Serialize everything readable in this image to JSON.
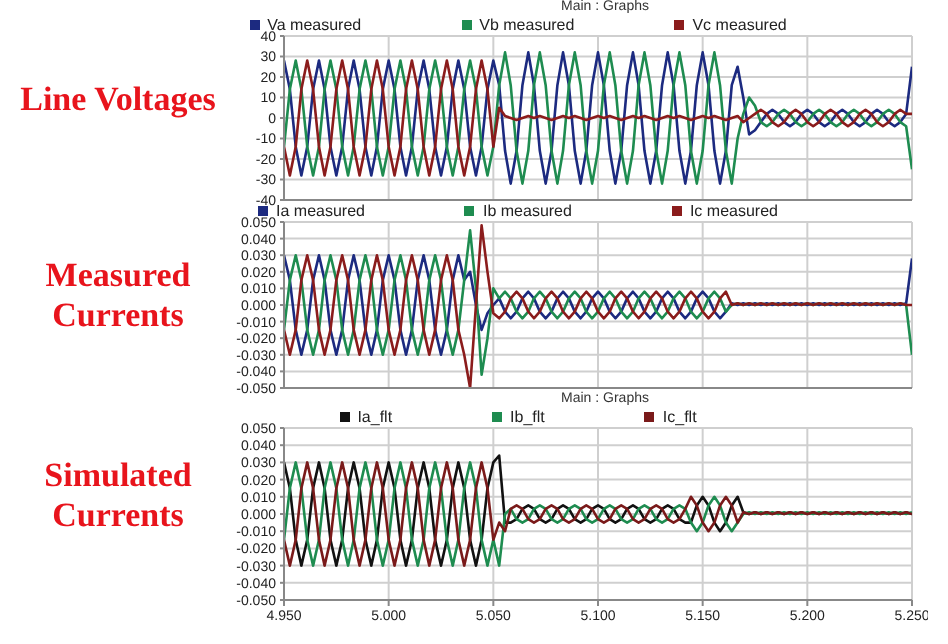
{
  "chart_data": [
    {
      "type": "line",
      "title": "Main : Graphs",
      "ylabel": "Line Voltages",
      "legend": "top",
      "grid": true,
      "tick_labels": "y",
      "xlim": [
        4.95,
        5.25
      ],
      "xticks": [
        {
          "value": 4.95,
          "label": null
        },
        {
          "value": 5.0,
          "label": null
        },
        {
          "value": 5.05,
          "label": null
        },
        {
          "value": 5.1,
          "label": null
        },
        {
          "value": 5.15,
          "label": null
        },
        {
          "value": 5.2,
          "label": null
        },
        {
          "value": 5.25,
          "label": null
        }
      ],
      "ylim": [
        -40,
        40
      ],
      "yticks": [
        -40,
        -30,
        -20,
        -10,
        0,
        10,
        20,
        30,
        40
      ],
      "x": [
        4.95,
        4.9528,
        4.9556,
        4.9583,
        4.9611,
        4.9639,
        4.9667,
        4.9694,
        4.9722,
        4.975,
        4.9778,
        4.9806,
        4.9833,
        4.9861,
        4.9889,
        4.9917,
        4.9944,
        4.9972,
        5.0,
        5.0028,
        5.0056,
        5.0083,
        5.0111,
        5.0139,
        5.0167,
        5.0194,
        5.0222,
        5.025,
        5.0278,
        5.0306,
        5.0333,
        5.0361,
        5.0389,
        5.0417,
        5.0444,
        5.0472,
        5.05,
        5.0528,
        5.0556,
        5.0583,
        5.0611,
        5.0639,
        5.0667,
        5.0694,
        5.0722,
        5.075,
        5.0778,
        5.0806,
        5.0833,
        5.0861,
        5.0889,
        5.0917,
        5.0944,
        5.0972,
        5.1,
        5.1028,
        5.1056,
        5.1083,
        5.1111,
        5.1139,
        5.1167,
        5.1194,
        5.1222,
        5.125,
        5.1278,
        5.1306,
        5.1333,
        5.1361,
        5.1389,
        5.1417,
        5.1444,
        5.1472,
        5.15,
        5.1528,
        5.1556,
        5.1583,
        5.1611,
        5.1639,
        5.1667,
        5.1694,
        5.1722,
        5.175,
        5.1778,
        5.1806,
        5.1833,
        5.1861,
        5.1889,
        5.1917,
        5.1944,
        5.1972,
        5.2,
        5.2028,
        5.2056,
        5.2083,
        5.2111,
        5.2139,
        5.2167,
        5.2194,
        5.2222,
        5.225,
        5.2278,
        5.2306,
        5.2333,
        5.2361,
        5.2389,
        5.2417,
        5.2444,
        5.2472,
        5.25
      ],
      "series": [
        {
          "name": "Va measured",
          "color": "#1c2a80",
          "values": [
            28,
            14,
            -14,
            -28,
            -14,
            14,
            28,
            14,
            -14,
            -28,
            -14,
            14,
            28,
            14,
            -14,
            -28,
            -14,
            14,
            28,
            14,
            -14,
            -28,
            -14,
            14,
            28,
            14,
            -14,
            -28,
            -14,
            14,
            28,
            14,
            -14,
            -28,
            -14,
            14,
            28,
            16,
            -16,
            -32,
            -16,
            16,
            32,
            16,
            -16,
            -32,
            -16,
            16,
            32,
            16,
            -16,
            -32,
            -16,
            16,
            32,
            16,
            -16,
            -32,
            -16,
            16,
            32,
            16,
            -16,
            -32,
            -16,
            16,
            32,
            16,
            -16,
            -32,
            -16,
            16,
            32,
            16,
            -16,
            -32,
            -16,
            16,
            25,
            10,
            -8,
            -6,
            -2,
            2,
            4,
            2,
            -2,
            -4,
            -2,
            2,
            4,
            2,
            -2,
            -4,
            -2,
            2,
            4,
            2,
            -2,
            -4,
            -2,
            2,
            4,
            2,
            -2,
            -4,
            -2,
            2,
            25
          ]
        },
        {
          "name": "Vb measured",
          "color": "#1e8c50",
          "values": [
            -14,
            14,
            28,
            14,
            -14,
            -28,
            -14,
            14,
            28,
            14,
            -14,
            -28,
            -14,
            14,
            28,
            14,
            -14,
            -28,
            -14,
            14,
            28,
            14,
            -14,
            -28,
            -14,
            14,
            28,
            14,
            -14,
            -28,
            -14,
            14,
            28,
            14,
            -14,
            -28,
            -14,
            16,
            32,
            16,
            -16,
            -32,
            -16,
            16,
            32,
            16,
            -16,
            -32,
            -16,
            16,
            32,
            16,
            -16,
            -32,
            -16,
            16,
            32,
            16,
            -16,
            -32,
            -16,
            16,
            32,
            16,
            -16,
            -32,
            -16,
            16,
            32,
            16,
            -16,
            -32,
            -16,
            16,
            32,
            16,
            -16,
            -32,
            -10,
            2,
            10,
            6,
            -2,
            -4,
            -2,
            2,
            4,
            2,
            -2,
            -4,
            -2,
            2,
            4,
            2,
            -2,
            -4,
            -2,
            2,
            4,
            2,
            -2,
            -4,
            -2,
            2,
            4,
            2,
            -2,
            -4,
            -25
          ]
        },
        {
          "name": "Vc measured",
          "color": "#8b1c1c",
          "values": [
            -14,
            -28,
            -14,
            14,
            28,
            14,
            -14,
            -28,
            -14,
            14,
            28,
            14,
            -14,
            -28,
            -14,
            14,
            28,
            14,
            -14,
            -28,
            -14,
            14,
            28,
            14,
            -14,
            -28,
            -14,
            14,
            28,
            14,
            -14,
            -28,
            -14,
            14,
            28,
            14,
            -14,
            5,
            1,
            0,
            -1,
            0,
            1,
            0,
            1,
            0,
            -1,
            0,
            1,
            0,
            1,
            0,
            -1,
            0,
            1,
            0,
            1,
            0,
            -1,
            0,
            1,
            0,
            1,
            0,
            -1,
            0,
            1,
            0,
            1,
            0,
            -1,
            0,
            1,
            0,
            1,
            0,
            -1,
            0,
            1,
            -2,
            0,
            2,
            4,
            2,
            -2,
            -4,
            -2,
            2,
            4,
            2,
            -2,
            -4,
            -2,
            2,
            4,
            2,
            -2,
            -4,
            -2,
            2,
            4,
            2,
            -2,
            -4,
            -2,
            2,
            4,
            2,
            2
          ]
        }
      ]
    },
    {
      "type": "line",
      "ylabel": "Measured Currents",
      "legend": "top",
      "grid": true,
      "tick_labels": "y",
      "xlim": [
        4.95,
        5.25
      ],
      "xticks": [
        {
          "value": 4.95,
          "label": null
        },
        {
          "value": 5.0,
          "label": null
        },
        {
          "value": 5.05,
          "label": null
        },
        {
          "value": 5.1,
          "label": null
        },
        {
          "value": 5.15,
          "label": null
        },
        {
          "value": 5.2,
          "label": null
        },
        {
          "value": 5.25,
          "label": null
        }
      ],
      "ylim": [
        -0.05,
        0.05
      ],
      "yticks": [
        {
          "value": -0.05,
          "label": "-0.050"
        },
        {
          "value": -0.04,
          "label": "-0.040"
        },
        {
          "value": -0.03,
          "label": "-0.030"
        },
        {
          "value": -0.02,
          "label": "-0.020"
        },
        {
          "value": -0.01,
          "label": "-0.010"
        },
        {
          "value": 0,
          "label": "0.000"
        },
        {
          "value": 0.01,
          "label": "0.010"
        },
        {
          "value": 0.02,
          "label": "0.020"
        },
        {
          "value": 0.03,
          "label": "0.030"
        },
        {
          "value": 0.04,
          "label": "0.040"
        },
        {
          "value": 0.05,
          "label": "0.050"
        }
      ],
      "x": [
        4.95,
        4.9528,
        4.9556,
        4.9583,
        4.9611,
        4.9639,
        4.9667,
        4.9694,
        4.9722,
        4.975,
        4.9778,
        4.9806,
        4.9833,
        4.9861,
        4.9889,
        4.9917,
        4.9944,
        4.9972,
        5.0,
        5.0028,
        5.0056,
        5.0083,
        5.0111,
        5.0139,
        5.0167,
        5.0194,
        5.0222,
        5.025,
        5.0278,
        5.0306,
        5.0333,
        5.0361,
        5.0389,
        5.0417,
        5.0444,
        5.0472,
        5.05,
        5.0528,
        5.0556,
        5.0583,
        5.0611,
        5.0639,
        5.0667,
        5.0694,
        5.0722,
        5.075,
        5.0778,
        5.0806,
        5.0833,
        5.0861,
        5.0889,
        5.0917,
        5.0944,
        5.0972,
        5.1,
        5.1028,
        5.1056,
        5.1083,
        5.1111,
        5.1139,
        5.1167,
        5.1194,
        5.1222,
        5.125,
        5.1278,
        5.1306,
        5.1333,
        5.1361,
        5.1389,
        5.1417,
        5.1444,
        5.1472,
        5.15,
        5.1528,
        5.1556,
        5.1583,
        5.1611,
        5.1639,
        5.1667,
        5.1694,
        5.1722,
        5.175,
        5.1778,
        5.1806,
        5.1833,
        5.1861,
        5.1889,
        5.1917,
        5.1944,
        5.1972,
        5.2,
        5.2028,
        5.2056,
        5.2083,
        5.2111,
        5.2139,
        5.2167,
        5.2194,
        5.2222,
        5.225,
        5.2278,
        5.2306,
        5.2333,
        5.2361,
        5.2389,
        5.2417,
        5.2444,
        5.2472,
        5.25
      ],
      "series": [
        {
          "name": "Ia measured",
          "color": "#1c2a80",
          "values": [
            0.03,
            0.015,
            -0.015,
            -0.03,
            -0.015,
            0.015,
            0.03,
            0.015,
            -0.015,
            -0.03,
            -0.015,
            0.015,
            0.03,
            0.015,
            -0.015,
            -0.03,
            -0.015,
            0.015,
            0.03,
            0.015,
            -0.015,
            -0.03,
            -0.015,
            0.015,
            0.03,
            0.015,
            -0.015,
            -0.03,
            -0.015,
            0.015,
            0.03,
            0.015,
            0.02,
            0,
            -0.015,
            -0.005,
            0,
            0.004,
            -0.004,
            -0.008,
            -0.004,
            0.004,
            0.008,
            0.004,
            -0.004,
            -0.008,
            -0.004,
            0.004,
            0.008,
            0.004,
            -0.004,
            -0.008,
            -0.004,
            0.004,
            0.008,
            0.004,
            -0.004,
            -0.008,
            -0.004,
            0.004,
            0.008,
            0.004,
            -0.004,
            -0.008,
            -0.004,
            0.004,
            0.008,
            0.004,
            -0.004,
            -0.008,
            -0.004,
            0.004,
            0.008,
            0.004,
            -0.004,
            -0.008,
            -0.004,
            0.001,
            0,
            0.001,
            0,
            0.001,
            0,
            0.001,
            0,
            0.001,
            0,
            0.001,
            0,
            0.001,
            0,
            0.001,
            0,
            0.001,
            0,
            0.001,
            0,
            0.001,
            0,
            0.001,
            0,
            0.001,
            0,
            0.001,
            0,
            0.001,
            0,
            0.001,
            0.028
          ]
        },
        {
          "name": "Ib measured",
          "color": "#1e8c50",
          "values": [
            -0.015,
            0.015,
            0.03,
            0.015,
            -0.015,
            -0.03,
            -0.015,
            0.015,
            0.03,
            0.015,
            -0.015,
            -0.03,
            -0.015,
            0.015,
            0.03,
            0.015,
            -0.015,
            -0.03,
            -0.015,
            0.015,
            0.03,
            0.015,
            -0.015,
            -0.03,
            -0.015,
            0.015,
            0.03,
            0.015,
            -0.015,
            -0.03,
            -0.015,
            0.015,
            0.045,
            0.01,
            -0.042,
            -0.02,
            0.01,
            0.004,
            0.008,
            0.004,
            -0.004,
            -0.008,
            -0.004,
            0.004,
            0.008,
            0.004,
            -0.004,
            -0.008,
            -0.004,
            0.004,
            0.008,
            0.004,
            -0.004,
            -0.008,
            -0.004,
            0.004,
            0.008,
            0.004,
            -0.004,
            -0.008,
            -0.004,
            0.004,
            0.008,
            0.004,
            -0.004,
            -0.008,
            -0.004,
            0.004,
            0.008,
            0.004,
            -0.004,
            -0.008,
            -0.004,
            0.004,
            0.008,
            0.004,
            -0.004,
            0,
            0.001,
            0,
            0.001,
            0,
            0.001,
            0,
            0.001,
            0,
            0.001,
            0,
            0.001,
            0,
            0.001,
            0,
            0.001,
            0,
            0.001,
            0,
            0.001,
            0,
            0.001,
            0,
            0.001,
            0,
            0.001,
            0,
            0.001,
            0,
            0.001,
            0,
            -0.03
          ]
        },
        {
          "name": "Ic measured",
          "color": "#8b1c1c",
          "values": [
            -0.015,
            -0.03,
            -0.015,
            0.015,
            0.03,
            0.015,
            -0.015,
            -0.03,
            -0.015,
            0.015,
            0.03,
            0.015,
            -0.015,
            -0.03,
            -0.015,
            0.015,
            0.03,
            0.015,
            -0.015,
            -0.03,
            -0.015,
            0.015,
            0.03,
            0.015,
            -0.015,
            -0.03,
            -0.015,
            0.015,
            0.03,
            0.015,
            -0.015,
            -0.03,
            -0.05,
            0,
            0.048,
            0.02,
            -0.005,
            -0.008,
            -0.004,
            0.004,
            0.008,
            0.004,
            -0.004,
            -0.008,
            -0.004,
            0.004,
            0.008,
            0.004,
            -0.004,
            -0.008,
            -0.004,
            0.004,
            0.008,
            0.004,
            -0.004,
            -0.008,
            -0.004,
            0.004,
            0.008,
            0.004,
            -0.004,
            -0.008,
            -0.004,
            0.004,
            0.008,
            0.004,
            -0.004,
            -0.008,
            -0.004,
            0.004,
            0.008,
            0.004,
            -0.004,
            -0.008,
            -0.004,
            0.004,
            0.008,
            0,
            0.001,
            0,
            0.001,
            0,
            0.001,
            0,
            0.001,
            0,
            0.001,
            0,
            0.001,
            0,
            0.001,
            0,
            0.001,
            0,
            0.001,
            0,
            0.001,
            0,
            0.001,
            0,
            0.001,
            0,
            0.001,
            0,
            0.001,
            0,
            0.001,
            0,
            0
          ]
        }
      ]
    },
    {
      "type": "line",
      "title": "Main : Graphs",
      "ylabel": "Simulated Currents",
      "legend": "top",
      "grid": true,
      "xlim": [
        4.95,
        5.25
      ],
      "xticks": [
        {
          "value": 4.95,
          "label": "4.950"
        },
        {
          "value": 5.0,
          "label": "5.000"
        },
        {
          "value": 5.05,
          "label": "5.050"
        },
        {
          "value": 5.1,
          "label": "5.100"
        },
        {
          "value": 5.15,
          "label": "5.150"
        },
        {
          "value": 5.2,
          "label": "5.200"
        },
        {
          "value": 5.25,
          "label": "5.250"
        }
      ],
      "ylim": [
        -0.05,
        0.05
      ],
      "yticks": [
        {
          "value": -0.05,
          "label": "-0.050"
        },
        {
          "value": -0.04,
          "label": "-0.040"
        },
        {
          "value": -0.03,
          "label": "-0.030"
        },
        {
          "value": -0.02,
          "label": "-0.020"
        },
        {
          "value": -0.01,
          "label": "-0.010"
        },
        {
          "value": 0,
          "label": "0.000"
        },
        {
          "value": 0.01,
          "label": "0.010"
        },
        {
          "value": 0.02,
          "label": "0.020"
        },
        {
          "value": 0.03,
          "label": "0.030"
        },
        {
          "value": 0.04,
          "label": "0.040"
        },
        {
          "value": 0.05,
          "label": "0.050"
        }
      ],
      "x": [
        4.95,
        4.9528,
        4.9556,
        4.9583,
        4.9611,
        4.9639,
        4.9667,
        4.9694,
        4.9722,
        4.975,
        4.9778,
        4.9806,
        4.9833,
        4.9861,
        4.9889,
        4.9917,
        4.9944,
        4.9972,
        5.0,
        5.0028,
        5.0056,
        5.0083,
        5.0111,
        5.0139,
        5.0167,
        5.0194,
        5.0222,
        5.025,
        5.0278,
        5.0306,
        5.0333,
        5.0361,
        5.0389,
        5.0417,
        5.0444,
        5.0472,
        5.05,
        5.0528,
        5.0556,
        5.0583,
        5.0611,
        5.0639,
        5.0667,
        5.0694,
        5.0722,
        5.075,
        5.0778,
        5.0806,
        5.0833,
        5.0861,
        5.0889,
        5.0917,
        5.0944,
        5.0972,
        5.1,
        5.1028,
        5.1056,
        5.1083,
        5.1111,
        5.1139,
        5.1167,
        5.1194,
        5.1222,
        5.125,
        5.1278,
        5.1306,
        5.1333,
        5.1361,
        5.1389,
        5.1417,
        5.1444,
        5.1472,
        5.15,
        5.1528,
        5.1556,
        5.1583,
        5.1611,
        5.1639,
        5.1667,
        5.1694,
        5.1722,
        5.175,
        5.1778,
        5.1806,
        5.1833,
        5.1861,
        5.1889,
        5.1917,
        5.1944,
        5.1972,
        5.2,
        5.2028,
        5.2056,
        5.2083,
        5.2111,
        5.2139,
        5.2167,
        5.2194,
        5.2222,
        5.225,
        5.2278,
        5.2306,
        5.2333,
        5.2361,
        5.2389,
        5.2417,
        5.2444,
        5.2472,
        5.25
      ],
      "series": [
        {
          "name": "Ia_flt",
          "color": "#111111",
          "values": [
            0.03,
            0.015,
            -0.015,
            -0.03,
            -0.015,
            0.015,
            0.03,
            0.015,
            -0.015,
            -0.03,
            -0.015,
            0.015,
            0.03,
            0.015,
            -0.015,
            -0.03,
            -0.015,
            0.015,
            0.03,
            0.015,
            -0.015,
            -0.03,
            -0.015,
            0.015,
            0.03,
            0.015,
            -0.015,
            -0.03,
            -0.015,
            0.015,
            0.03,
            0.015,
            -0.015,
            -0.03,
            -0.015,
            0.015,
            0.03,
            0.034,
            -0.005,
            -0.005,
            -0.003,
            0.003,
            0.005,
            0.003,
            -0.003,
            -0.005,
            -0.003,
            0.003,
            0.005,
            0.003,
            -0.003,
            -0.005,
            -0.003,
            0.003,
            0.005,
            0.003,
            -0.003,
            -0.005,
            -0.003,
            0.003,
            0.005,
            0.003,
            -0.003,
            -0.005,
            -0.003,
            0.003,
            0.005,
            0.003,
            -0.003,
            -0.005,
            -0.005,
            0.005,
            0.01,
            0.005,
            -0.005,
            -0.01,
            -0.005,
            0.005,
            0.01,
            0.001,
            0,
            0.001,
            0,
            0.001,
            0,
            0.001,
            0,
            0.001,
            0,
            0.001,
            0,
            0.001,
            0,
            0.001,
            0,
            0.001,
            0,
            0.001,
            0,
            0.001,
            0,
            0.001,
            0,
            0.001,
            0,
            0.001,
            0,
            0.001,
            0
          ]
        },
        {
          "name": "Ib_flt",
          "color": "#1e8c50",
          "values": [
            -0.015,
            0.015,
            0.03,
            0.015,
            -0.015,
            -0.03,
            -0.015,
            0.015,
            0.03,
            0.015,
            -0.015,
            -0.03,
            -0.015,
            0.015,
            0.03,
            0.015,
            -0.015,
            -0.03,
            -0.015,
            0.015,
            0.03,
            0.015,
            -0.015,
            -0.03,
            -0.015,
            0.015,
            0.03,
            0.015,
            -0.015,
            -0.03,
            -0.015,
            0.015,
            0.03,
            0.015,
            -0.015,
            -0.03,
            -0.015,
            -0.03,
            0,
            0.003,
            -0.003,
            -0.005,
            -0.003,
            0.003,
            0.005,
            0.003,
            -0.003,
            -0.005,
            -0.003,
            0.003,
            0.005,
            0.003,
            -0.003,
            -0.005,
            -0.003,
            0.003,
            0.005,
            0.003,
            -0.003,
            -0.005,
            -0.003,
            0.003,
            0.005,
            0.003,
            -0.003,
            -0.005,
            -0.003,
            0.003,
            0.005,
            0.003,
            -0.005,
            -0.01,
            -0.005,
            0.005,
            0.01,
            0.005,
            -0.005,
            -0.01,
            -0.005,
            0,
            0.001,
            0,
            0.001,
            0,
            0.001,
            0,
            0.001,
            0,
            0.001,
            0,
            0.001,
            0,
            0.001,
            0,
            0.001,
            0,
            0.001,
            0,
            0.001,
            0,
            0.001,
            0,
            0.001,
            0,
            0.001,
            0,
            0.001,
            0,
            0.001
          ]
        },
        {
          "name": "Ic_flt",
          "color": "#7a1a1a",
          "values": [
            -0.015,
            -0.03,
            -0.015,
            0.015,
            0.03,
            0.015,
            -0.015,
            -0.03,
            -0.015,
            0.015,
            0.03,
            0.015,
            -0.015,
            -0.03,
            -0.015,
            0.015,
            0.03,
            0.015,
            -0.015,
            -0.03,
            -0.015,
            0.015,
            0.03,
            0.015,
            -0.015,
            -0.03,
            -0.015,
            0.015,
            0.03,
            0.015,
            -0.015,
            -0.03,
            -0.015,
            0.015,
            0.03,
            0.015,
            -0.015,
            -0.005,
            -0.01,
            0.003,
            0.005,
            0.003,
            -0.003,
            -0.005,
            -0.003,
            0.003,
            0.005,
            0.003,
            -0.003,
            -0.005,
            -0.003,
            0.003,
            0.005,
            0.003,
            -0.003,
            -0.005,
            -0.003,
            0.003,
            0.005,
            0.003,
            -0.003,
            -0.005,
            -0.003,
            0.003,
            0.005,
            0.003,
            -0.003,
            -0.005,
            -0.003,
            0.003,
            0.01,
            0.005,
            -0.005,
            -0.01,
            -0.005,
            0.005,
            0.01,
            0.005,
            -0.005,
            0.001,
            0,
            0.001,
            0,
            0.001,
            0,
            0.001,
            0,
            0.001,
            0,
            0.001,
            0,
            0.001,
            0,
            0.001,
            0,
            0.001,
            0,
            0.001,
            0,
            0.001,
            0,
            0.001,
            0,
            0.001,
            0,
            0.001,
            0,
            0.001,
            0
          ]
        }
      ]
    }
  ]
}
